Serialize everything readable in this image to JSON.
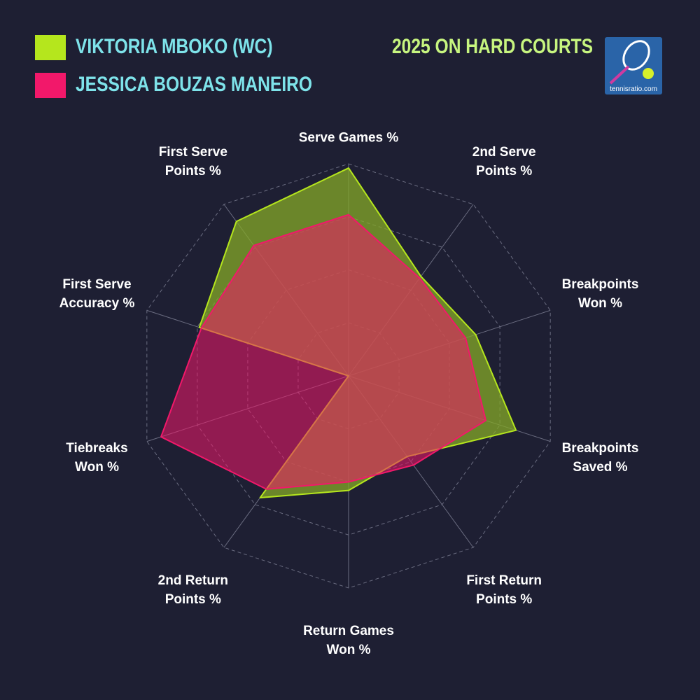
{
  "chart_data": {
    "type": "radar",
    "title": "2025 ON HARD COURTS",
    "categories": [
      "Serve Games %",
      "2nd Serve\nPoints %",
      "Breakpoints\nWon %",
      "Breakpoints\nSaved %",
      "First Return\nPoints %",
      "Return Games\nWon %",
      "2nd Return\nPoints %",
      "Tiebreaks\nWon %",
      "First Serve\nAccuracy %",
      "First Serve\nPoints %"
    ],
    "series": [
      {
        "name": "VIKTORIA MBOKO (WC)",
        "color": "#b5e61d",
        "values": [
          98,
          58,
          63,
          83,
          47,
          54,
          71,
          0,
          74,
          90
        ]
      },
      {
        "name": "JESSICA BOUZAS MANEIRO",
        "color": "#f2186a",
        "values": [
          76,
          57,
          58,
          68,
          52,
          50,
          66,
          93,
          73,
          76
        ]
      }
    ],
    "rlim": [
      0,
      100
    ],
    "rticks": [
      25,
      50,
      75,
      100
    ],
    "grid": true
  },
  "logo_text": "tennisratio.com"
}
